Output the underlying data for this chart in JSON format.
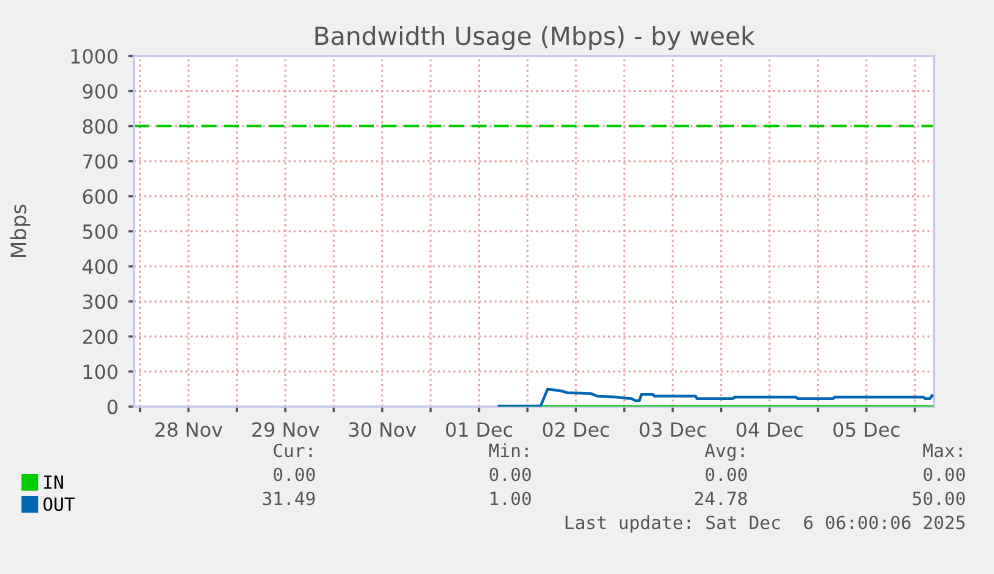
{
  "chart_data": {
    "type": "line",
    "title": "Bandwidth Usage (Mbps) - by week",
    "ylabel": "Mbps",
    "xlim": [
      "2025-11-27T22:30",
      "2025-12-06T04:45"
    ],
    "ylim": [
      0,
      1000
    ],
    "yticks": [
      0,
      100,
      200,
      300,
      400,
      500,
      600,
      700,
      800,
      900,
      1000
    ],
    "xticks": [
      {
        "value": "2025-11-28T00:00",
        "label": null
      },
      {
        "value": "2025-11-28T12:00",
        "label": "28 Nov"
      },
      {
        "value": "2025-11-29T00:00",
        "label": null
      },
      {
        "value": "2025-11-29T12:00",
        "label": "29 Nov"
      },
      {
        "value": "2025-11-30T00:00",
        "label": null
      },
      {
        "value": "2025-11-30T12:00",
        "label": "30 Nov"
      },
      {
        "value": "2025-12-01T00:00",
        "label": null
      },
      {
        "value": "2025-12-01T12:00",
        "label": "01 Dec"
      },
      {
        "value": "2025-12-02T00:00",
        "label": null
      },
      {
        "value": "2025-12-02T12:00",
        "label": "02 Dec"
      },
      {
        "value": "2025-12-03T00:00",
        "label": null
      },
      {
        "value": "2025-12-03T12:00",
        "label": "03 Dec"
      },
      {
        "value": "2025-12-04T00:00",
        "label": null
      },
      {
        "value": "2025-12-04T12:00",
        "label": "04 Dec"
      },
      {
        "value": "2025-12-05T00:00",
        "label": null
      },
      {
        "value": "2025-12-05T12:00",
        "label": "05 Dec"
      },
      {
        "value": "2025-12-06T00:00",
        "label": null
      }
    ],
    "grid": true,
    "legend": "bottom",
    "marker": "none",
    "line_style": "solid",
    "ref_lines": [
      {
        "axis": "y",
        "value": 800,
        "color": "#00cc00",
        "line_style": "dashed"
      }
    ],
    "series": [
      {
        "name": "IN",
        "color": "#00cc00",
        "x": [
          "2025-12-01T17:00",
          "2025-12-06T04:15"
        ],
        "values": [
          0,
          0
        ]
      },
      {
        "name": "OUT",
        "color": "#0066b3",
        "x": [
          "2025-12-01T17:00",
          "2025-12-02T03:15",
          "2025-12-02T05:00",
          "2025-12-02T08:20",
          "2025-12-02T09:50",
          "2025-12-02T15:45",
          "2025-12-02T17:15",
          "2025-12-02T21:15",
          "2025-12-03T01:45",
          "2025-12-03T02:45",
          "2025-12-03T03:45",
          "2025-12-03T04:15",
          "2025-12-03T07:00",
          "2025-12-03T07:30",
          "2025-12-03T17:40",
          "2025-12-03T18:00",
          "2025-12-04T02:55",
          "2025-12-04T03:20",
          "2025-12-04T18:30",
          "2025-12-04T19:00",
          "2025-12-05T03:45",
          "2025-12-05T04:10",
          "2025-12-06T02:10",
          "2025-12-06T02:30",
          "2025-12-06T03:45",
          "2025-12-06T04:15"
        ],
        "values": [
          1,
          1,
          50,
          45,
          40,
          37,
          30,
          28,
          23,
          17,
          17,
          35,
          35,
          30,
          30,
          23,
          23,
          27,
          27,
          23,
          23,
          27,
          27,
          23,
          23,
          31
        ]
      }
    ],
    "annotations": [
      "Cur:",
      "Min:",
      "Avg:",
      "Max:",
      "0.00",
      "0.00",
      "0.00",
      "0.00",
      "31.49",
      "1.00",
      "24.78",
      "50.00",
      "Last update: Sat Dec  6 06:00:06 2025"
    ]
  }
}
